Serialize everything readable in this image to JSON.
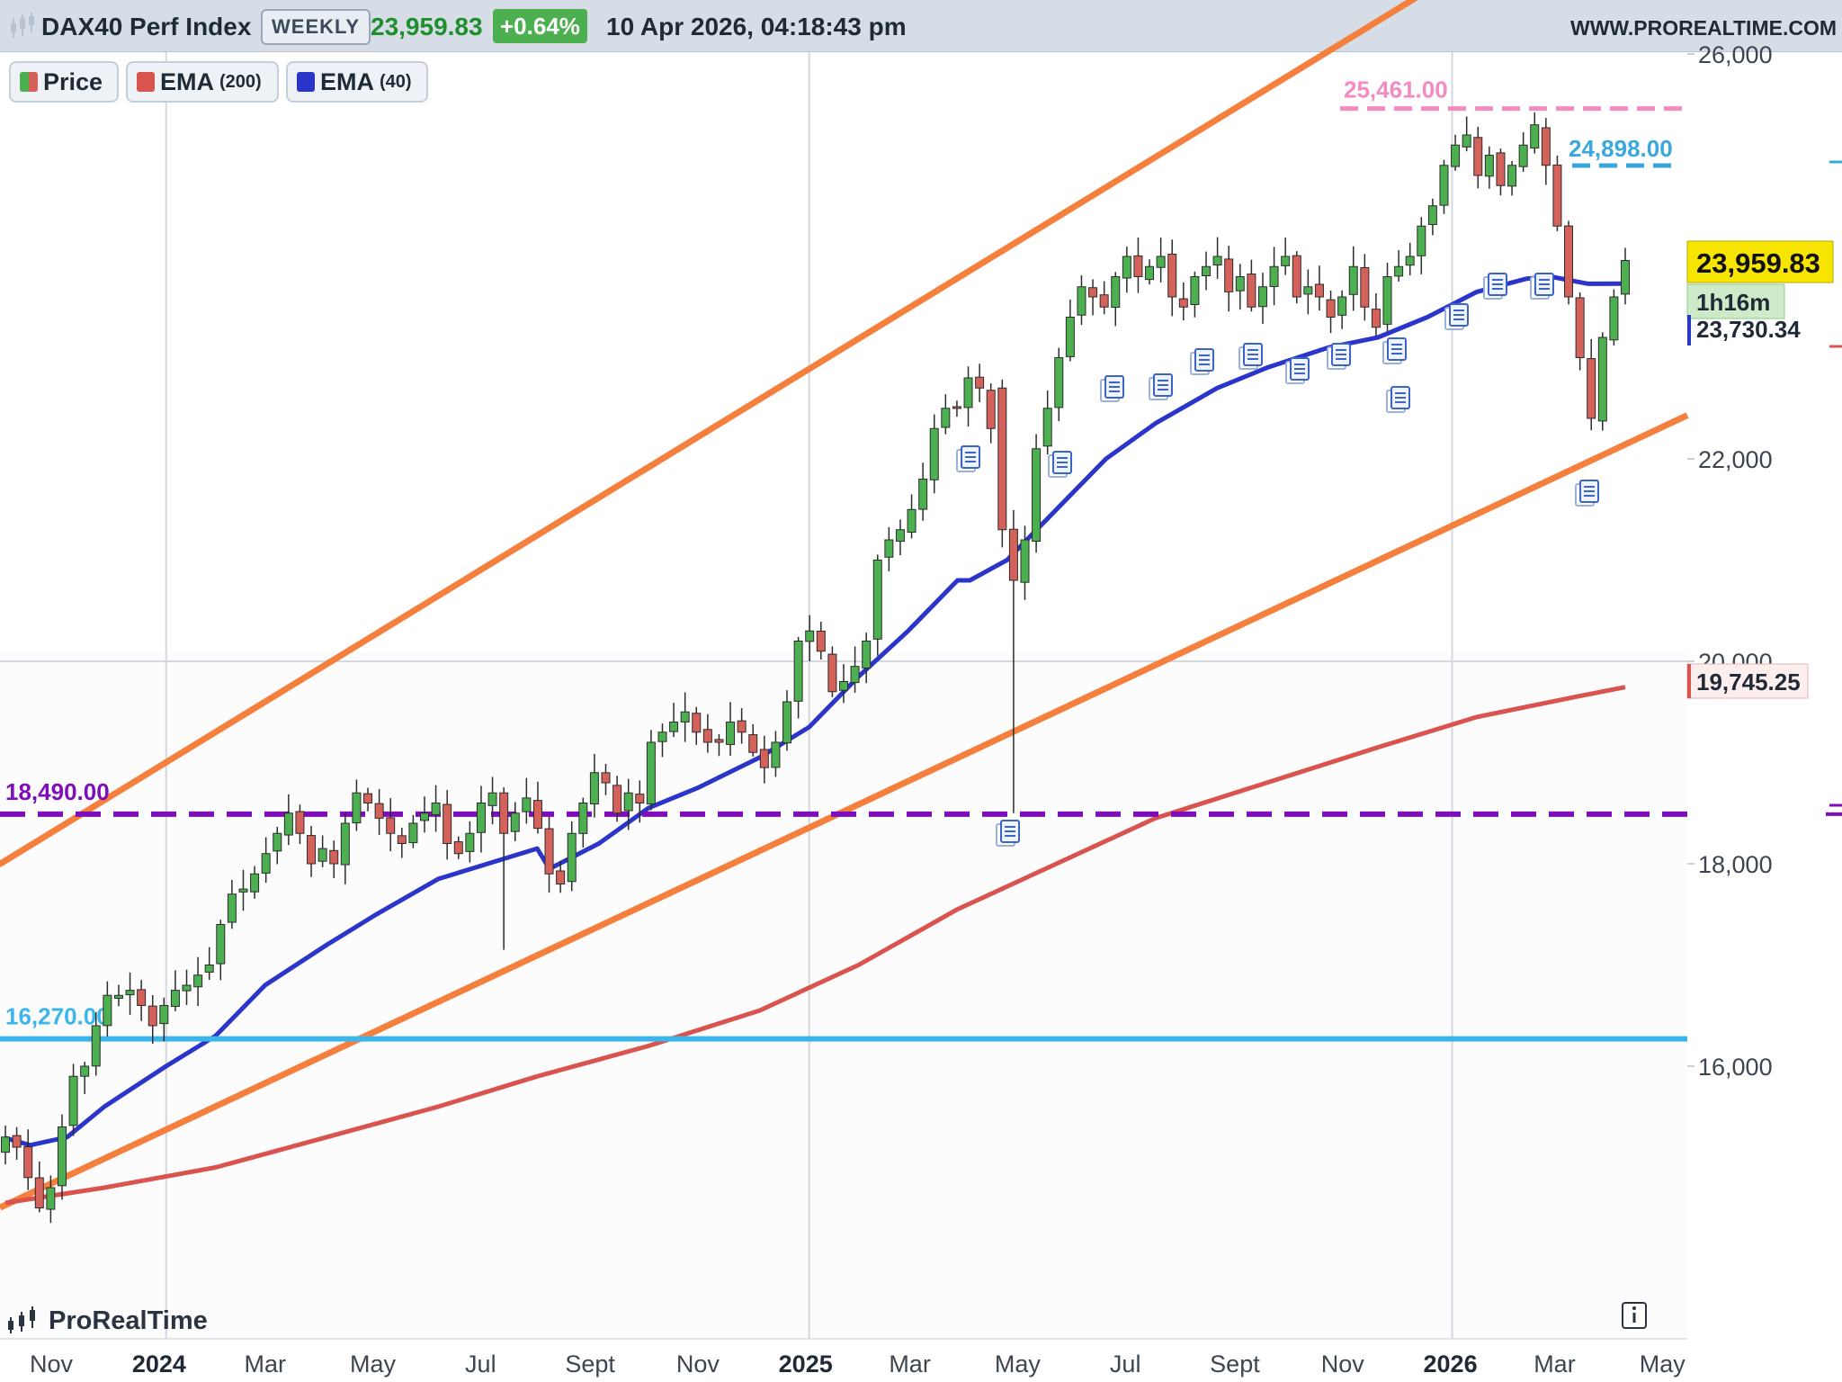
{
  "header": {
    "title": "DAX40 Perf Index",
    "frequency": "WEEKLY",
    "last_price": "23,959.83",
    "change_pct": "+0.64%",
    "datetime": "10 Apr 2026, 04:18:43 pm",
    "site": "WWW.PROREALTIME.COM"
  },
  "legend": [
    {
      "label": "Price",
      "param": "",
      "color": "#4caf50"
    },
    {
      "label": "EMA",
      "param": "(200)",
      "color": "#d9534f"
    },
    {
      "label": "EMA",
      "param": "(40)",
      "color": "#2b35c9"
    }
  ],
  "brand": "ProRealTime",
  "colors": {
    "up": "#4caf50",
    "down": "#d4625a",
    "ema200": "#d9534f",
    "ema40": "#2b35c9",
    "channel": "#f5803e",
    "support_purple": "#7d0fba",
    "support_blue": "#3cb6ea",
    "resistance_pink": "#f28bc0",
    "level_blue": "#3aa8de"
  },
  "chart_data": {
    "type": "candlestick",
    "y_axis": {
      "ticks": [
        16000,
        18000,
        20000,
        22000,
        26000
      ],
      "tick_labels": [
        "16,000",
        "18,000",
        "20,000",
        "22,000",
        "26,000"
      ]
    },
    "x_axis": {
      "labels": [
        "Nov",
        "2024",
        "Mar",
        "May",
        "Jul",
        "Sept",
        "Nov",
        "2025",
        "Mar",
        "May",
        "Jul",
        "Sept",
        "Nov",
        "2026",
        "Mar",
        "May"
      ]
    },
    "price_labels": [
      {
        "text": "23,959.83",
        "value": 23959.83,
        "style": "last"
      },
      {
        "text": "1h16m",
        "style": "timer"
      },
      {
        "text": "23,730.34",
        "value": 23730.34,
        "style": "ema40"
      },
      {
        "text": "19,745.25",
        "value": 19745.25,
        "style": "ema200"
      }
    ],
    "horizontal_lines": [
      {
        "label": "25,461.00",
        "value": 25461,
        "style": "dashed",
        "color": "#f28bc0"
      },
      {
        "label": "24,898.00",
        "value": 24898,
        "style": "dashed",
        "color": "#3aa8de"
      },
      {
        "label": "18,490.00",
        "value": 18490,
        "style": "dashed",
        "color": "#7d0fba"
      },
      {
        "label": "16,270.00",
        "value": 16270,
        "style": "solid",
        "color": "#3cb6ea"
      }
    ],
    "trend_channel": [
      {
        "name": "upper",
        "points": [
          [
            "2023-10-20",
            18180
          ],
          [
            "2025-12-26",
            26700
          ]
        ]
      },
      {
        "name": "lower",
        "points": [
          [
            "2023-10-27",
            14800
          ],
          [
            "2026-04-17",
            22200
          ]
        ]
      }
    ],
    "weekly_closes": [
      15300,
      15200,
      14900,
      14600,
      14800,
      15400,
      15900,
      16000,
      16400,
      16700,
      16700,
      16750,
      16600,
      16400,
      16600,
      16750,
      16800,
      16900,
      17000,
      17400,
      17700,
      17750,
      17900,
      18100,
      18300,
      18500,
      18300,
      18000,
      18150,
      18000,
      18400,
      18700,
      18600,
      18450,
      18300,
      18200,
      18400,
      18500,
      18600,
      18200,
      18100,
      18300,
      18600,
      18700,
      18300,
      18500,
      18650,
      18350,
      17900,
      17800,
      18300,
      18600,
      18900,
      18800,
      18500,
      18700,
      18600,
      19200,
      19300,
      19400,
      19500,
      19300,
      19200,
      19200,
      19400,
      19300,
      19100,
      18950,
      19200,
      19600,
      20200,
      20300,
      20100,
      19700,
      19800,
      19950,
      20200,
      21000,
      21200,
      21300,
      21500,
      21800,
      22300,
      22500,
      22500,
      22800,
      22700,
      22300,
      21300,
      20800,
      21200,
      22100,
      22500,
      23000,
      23400,
      23700,
      23600,
      23500,
      23800,
      24000,
      23800,
      23900,
      24000,
      23600,
      23500,
      23800,
      23900,
      24000,
      23650,
      23800,
      23500,
      23700,
      23900,
      24000,
      23600,
      23700,
      23600,
      23400,
      23600,
      23900,
      23500,
      23300,
      23800,
      23900,
      24000,
      24300,
      24500,
      24900,
      25100,
      25200,
      24800,
      25000,
      24700,
      24900,
      25100,
      25300,
      24900,
      24300,
      23600,
      23000,
      22400,
      23200,
      23600,
      23959.83
    ],
    "ema40_points": [
      [
        "2023-10-06",
        15290
      ],
      [
        "2023-10-20",
        15220
      ],
      [
        "2023-11-10",
        15300
      ],
      [
        "2023-12-01",
        15600
      ],
      [
        "2024-01-05",
        16000
      ],
      [
        "2024-02-02",
        16300
      ],
      [
        "2024-03-01",
        16800
      ],
      [
        "2024-04-05",
        17200
      ],
      [
        "2024-05-03",
        17500
      ],
      [
        "2024-06-07",
        17850
      ],
      [
        "2024-07-05",
        18000
      ],
      [
        "2024-08-02",
        18150
      ],
      [
        "2024-08-09",
        17950
      ],
      [
        "2024-09-06",
        18200
      ],
      [
        "2024-10-04",
        18550
      ],
      [
        "2024-11-01",
        18750
      ],
      [
        "2024-12-06",
        19050
      ],
      [
        "2025-01-03",
        19350
      ],
      [
        "2025-01-31",
        19850
      ],
      [
        "2025-02-28",
        20300
      ],
      [
        "2025-03-28",
        20800
      ],
      [
        "2025-04-04",
        20800
      ],
      [
        "2025-04-25",
        21000
      ],
      [
        "2025-05-23",
        21500
      ],
      [
        "2025-06-20",
        22000
      ],
      [
        "2025-07-18",
        22350
      ],
      [
        "2025-08-22",
        22700
      ],
      [
        "2025-09-19",
        22900
      ],
      [
        "2025-10-24",
        23100
      ],
      [
        "2025-11-21",
        23200
      ],
      [
        "2025-12-19",
        23400
      ],
      [
        "2026-01-16",
        23650
      ],
      [
        "2026-02-13",
        23780
      ],
      [
        "2026-02-27",
        23800
      ],
      [
        "2026-03-20",
        23730
      ],
      [
        "2026-04-10",
        23730.34
      ]
    ],
    "ema200_points": [
      [
        "2023-10-06",
        14650
      ],
      [
        "2023-12-01",
        14800
      ],
      [
        "2024-02-02",
        15000
      ],
      [
        "2024-04-05",
        15300
      ],
      [
        "2024-06-07",
        15600
      ],
      [
        "2024-08-02",
        15900
      ],
      [
        "2024-10-04",
        16200
      ],
      [
        "2024-12-06",
        16550
      ],
      [
        "2025-01-31",
        17000
      ],
      [
        "2025-03-28",
        17550
      ],
      [
        "2025-05-23",
        18000
      ],
      [
        "2025-07-18",
        18450
      ],
      [
        "2025-09-19",
        18800
      ],
      [
        "2025-11-21",
        19150
      ],
      [
        "2026-01-16",
        19450
      ],
      [
        "2026-03-13",
        19650
      ],
      [
        "2026-04-10",
        19745.25
      ]
    ]
  }
}
